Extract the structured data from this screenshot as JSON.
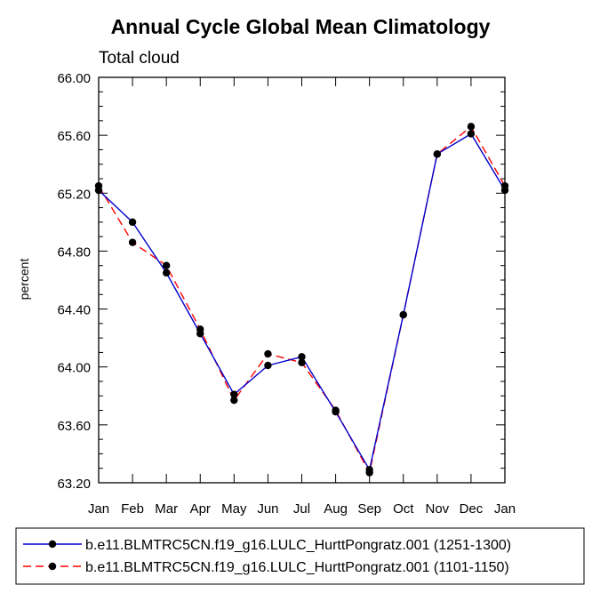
{
  "chart_data": {
    "type": "line",
    "title": "Annual Cycle Global Mean Climatology",
    "subtitle": "Total cloud",
    "xlabel": "",
    "ylabel": "percent",
    "categories": [
      "Jan",
      "Feb",
      "Mar",
      "Apr",
      "May",
      "Jun",
      "Jul",
      "Aug",
      "Sep",
      "Oct",
      "Nov",
      "Dec",
      "Jan"
    ],
    "ylim": [
      63.2,
      66.0
    ],
    "yticks": [
      "63.20",
      "63.60",
      "64.00",
      "64.40",
      "64.80",
      "65.20",
      "65.60",
      "66.00"
    ],
    "series": [
      {
        "name": "b.e11.BLMTRC5CN.f19_g16.LULC_HurttPongratz.001 (1251-1300)",
        "color": "#0000cc",
        "dash": "solid",
        "marker": "filled-circle",
        "values": [
          65.22,
          65.0,
          64.65,
          64.23,
          63.81,
          64.01,
          64.07,
          63.69,
          63.29,
          64.36,
          65.47,
          65.61,
          65.22
        ]
      },
      {
        "name": "b.e11.BLMTRC5CN.f19_g16.LULC_HurttPongratz.001 (1101-1150)",
        "color": "#ff0000",
        "dash": "dashed",
        "marker": "filled-circle",
        "values": [
          65.25,
          64.86,
          64.7,
          64.26,
          63.77,
          64.09,
          64.03,
          63.7,
          63.27,
          64.36,
          65.47,
          65.66,
          65.25
        ]
      }
    ],
    "legend": "bottom"
  }
}
